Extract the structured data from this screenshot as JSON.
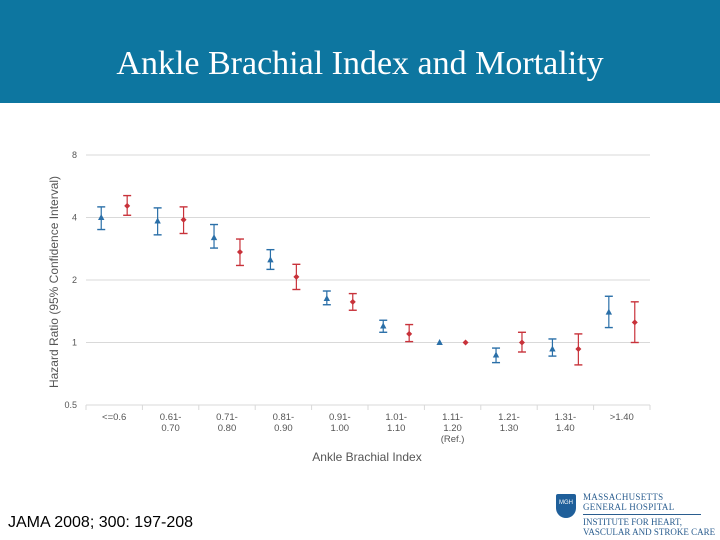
{
  "title": "Ankle Brachial Index and Mortality",
  "citation": "JAMA 2008; 300: 197-208",
  "logo": {
    "line1": "MASSACHUSETTS",
    "line2": "GENERAL HOSPITAL",
    "line3": "INSTITUTE FOR HEART,",
    "line4": "VASCULAR AND STROKE CARE",
    "shield_text": "MGH"
  },
  "colors": {
    "title_bar": "#0d76a0",
    "series_blue": "#2a6fa8",
    "series_red": "#c8323a",
    "grid": "#d9d9d9",
    "axis_text": "#555555"
  },
  "chart_data": {
    "type": "scatter",
    "title": "",
    "xlabel": "Ankle Brachial Index",
    "ylabel": "Hazard Ratio (95% Confidence Interval)",
    "y_scale": "log2",
    "ylim": [
      0.5,
      8
    ],
    "yticks": [
      0.5,
      1,
      2,
      4,
      8
    ],
    "ytick_labels": [
      "0.5",
      "1",
      "2",
      "4",
      "8"
    ],
    "grid": true,
    "categories": [
      {
        "label": [
          "<=0.6"
        ]
      },
      {
        "label": [
          "0.61-",
          "0.70"
        ]
      },
      {
        "label": [
          "0.71-",
          "0.80"
        ]
      },
      {
        "label": [
          "0.81-",
          "0.90"
        ]
      },
      {
        "label": [
          "0.91-",
          "1.00"
        ]
      },
      {
        "label": [
          "1.01-",
          "1.10"
        ]
      },
      {
        "label": [
          "1.11-",
          "1.20",
          "(Ref.)"
        ]
      },
      {
        "label": [
          "1.21-",
          "1.30"
        ]
      },
      {
        "label": [
          "1.31-",
          "1.40"
        ]
      },
      {
        "label": [
          ">1.40"
        ]
      }
    ],
    "series": [
      {
        "marker": "triangle",
        "color": "#2a6fa8",
        "points": [
          {
            "cat": 0,
            "y": 4.0,
            "lo": 3.5,
            "hi": 4.5
          },
          {
            "cat": 1,
            "y": 3.85,
            "lo": 3.3,
            "hi": 4.45
          },
          {
            "cat": 2,
            "y": 3.2,
            "lo": 2.85,
            "hi": 3.7
          },
          {
            "cat": 3,
            "y": 2.5,
            "lo": 2.25,
            "hi": 2.8
          },
          {
            "cat": 4,
            "y": 1.63,
            "lo": 1.52,
            "hi": 1.77
          },
          {
            "cat": 5,
            "y": 1.2,
            "lo": 1.12,
            "hi": 1.28
          },
          {
            "cat": 6,
            "y": 1.0
          },
          {
            "cat": 7,
            "y": 0.87,
            "lo": 0.8,
            "hi": 0.94
          },
          {
            "cat": 8,
            "y": 0.93,
            "lo": 0.86,
            "hi": 1.04
          },
          {
            "cat": 9,
            "y": 1.4,
            "lo": 1.18,
            "hi": 1.67
          }
        ]
      },
      {
        "marker": "diamond",
        "color": "#c8323a",
        "points": [
          {
            "cat": 0,
            "y": 4.55,
            "lo": 4.1,
            "hi": 5.1
          },
          {
            "cat": 1,
            "y": 3.9,
            "lo": 3.35,
            "hi": 4.5
          },
          {
            "cat": 2,
            "y": 2.73,
            "lo": 2.35,
            "hi": 3.15
          },
          {
            "cat": 3,
            "y": 2.07,
            "lo": 1.8,
            "hi": 2.38
          },
          {
            "cat": 4,
            "y": 1.57,
            "lo": 1.43,
            "hi": 1.72
          },
          {
            "cat": 5,
            "y": 1.1,
            "lo": 1.01,
            "hi": 1.22
          },
          {
            "cat": 6,
            "y": 1.0
          },
          {
            "cat": 7,
            "y": 1.0,
            "lo": 0.9,
            "hi": 1.12
          },
          {
            "cat": 8,
            "y": 0.93,
            "lo": 0.78,
            "hi": 1.1
          },
          {
            "cat": 9,
            "y": 1.25,
            "lo": 1.0,
            "hi": 1.57
          }
        ]
      }
    ]
  }
}
